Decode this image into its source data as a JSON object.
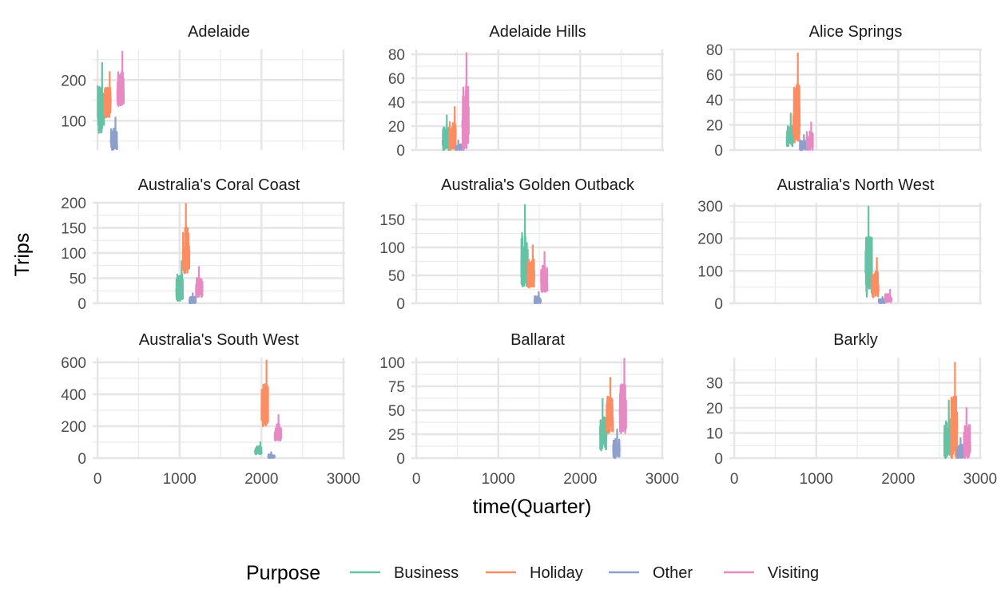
{
  "chart_data": {
    "type": "line",
    "xlabel": "time(Quarter)",
    "ylabel": "Trips",
    "legend": {
      "title": "Purpose",
      "position": "bottom",
      "entries": [
        {
          "name": "Business",
          "color": "#66c2a5"
        },
        {
          "name": "Holiday",
          "color": "#fc8d62"
        },
        {
          "name": "Other",
          "color": "#8da0cb"
        },
        {
          "name": "Visiting",
          "color": "#e78ac3"
        }
      ]
    },
    "x_ticks": [
      0,
      1000,
      2000,
      3000
    ],
    "grid": true,
    "panels": [
      {
        "title": "Adelaide",
        "xlim": [
          -60,
          3020
        ],
        "ylim": [
          28,
          275
        ],
        "y_ticks": [
          100,
          200
        ],
        "series": [
          {
            "name": "Business",
            "x": [
              0,
              80
            ],
            "range": [
              70,
              242
            ]
          },
          {
            "name": "Holiday",
            "x": [
              80,
              160
            ],
            "range": [
              108,
              220
            ]
          },
          {
            "name": "Other",
            "x": [
              160,
              240
            ],
            "range": [
              28,
              108
            ]
          },
          {
            "name": "Visiting",
            "x": [
              240,
              320
            ],
            "range": [
              136,
              270
            ]
          }
        ]
      },
      {
        "title": "Adelaide Hills",
        "xlim": [
          -60,
          3020
        ],
        "ylim": [
          0,
          84
        ],
        "y_ticks": [
          0,
          20,
          40,
          60,
          80
        ],
        "series": [
          {
            "name": "Business",
            "x": [
              320,
              400
            ],
            "range": [
              0,
              29
            ]
          },
          {
            "name": "Holiday",
            "x": [
              400,
              480
            ],
            "range": [
              0,
              36
            ]
          },
          {
            "name": "Other",
            "x": [
              480,
              560
            ],
            "range": [
              0,
              8
            ]
          },
          {
            "name": "Visiting",
            "x": [
              560,
              640
            ],
            "range": [
              0,
              81
            ]
          }
        ]
      },
      {
        "title": "Alice Springs",
        "xlim": [
          -60,
          3020
        ],
        "ylim": [
          0,
          80
        ],
        "y_ticks": [
          0,
          20,
          40,
          60,
          80
        ],
        "series": [
          {
            "name": "Business",
            "x": [
              640,
              720
            ],
            "range": [
              3,
              29
            ]
          },
          {
            "name": "Holiday",
            "x": [
              720,
              800
            ],
            "range": [
              6,
              77
            ]
          },
          {
            "name": "Other",
            "x": [
              800,
              880
            ],
            "range": [
              0,
              12
            ]
          },
          {
            "name": "Visiting",
            "x": [
              880,
              960
            ],
            "range": [
              0,
              22
            ]
          }
        ]
      },
      {
        "title": "Australia's Coral Coast",
        "xlim": [
          -60,
          3020
        ],
        "ylim": [
          0,
          200
        ],
        "y_ticks": [
          0,
          50,
          100,
          150,
          200
        ],
        "series": [
          {
            "name": "Business",
            "x": [
              960,
              1040
            ],
            "range": [
              5,
              84
            ]
          },
          {
            "name": "Holiday",
            "x": [
              1040,
              1120
            ],
            "range": [
              60,
              198
            ]
          },
          {
            "name": "Other",
            "x": [
              1120,
              1200
            ],
            "range": [
              0,
              20
            ]
          },
          {
            "name": "Visiting",
            "x": [
              1200,
              1280
            ],
            "range": [
              12,
              72
            ]
          }
        ]
      },
      {
        "title": "Australia's Golden Outback",
        "xlim": [
          -60,
          3020
        ],
        "ylim": [
          0,
          180
        ],
        "y_ticks": [
          0,
          50,
          100,
          150
        ],
        "series": [
          {
            "name": "Business",
            "x": [
              1280,
              1360
            ],
            "range": [
              30,
              176
            ]
          },
          {
            "name": "Holiday",
            "x": [
              1360,
              1440
            ],
            "range": [
              28,
              104
            ]
          },
          {
            "name": "Other",
            "x": [
              1440,
              1520
            ],
            "range": [
              0,
              20
            ]
          },
          {
            "name": "Visiting",
            "x": [
              1520,
              1600
            ],
            "range": [
              20,
              92
            ]
          }
        ]
      },
      {
        "title": "Australia's North West",
        "xlim": [
          -60,
          3020
        ],
        "ylim": [
          0,
          310
        ],
        "y_ticks": [
          0,
          100,
          200,
          300
        ],
        "series": [
          {
            "name": "Business",
            "x": [
              1600,
              1680
            ],
            "range": [
              20,
              298
            ]
          },
          {
            "name": "Holiday",
            "x": [
              1680,
              1760
            ],
            "range": [
              18,
              140
            ]
          },
          {
            "name": "Other",
            "x": [
              1760,
              1840
            ],
            "range": [
              0,
              20
            ]
          },
          {
            "name": "Visiting",
            "x": [
              1840,
              1920
            ],
            "range": [
              3,
              42
            ]
          }
        ]
      },
      {
        "title": "Australia's South West",
        "xlim": [
          -60,
          3020
        ],
        "ylim": [
          0,
          630
        ],
        "y_ticks": [
          0,
          200,
          400,
          600
        ],
        "series": [
          {
            "name": "Business",
            "x": [
              1920,
              2000
            ],
            "range": [
              24,
              100
            ]
          },
          {
            "name": "Holiday",
            "x": [
              2000,
              2080
            ],
            "range": [
              200,
              612
            ]
          },
          {
            "name": "Other",
            "x": [
              2080,
              2160
            ],
            "range": [
              0,
              38
            ]
          },
          {
            "name": "Visiting",
            "x": [
              2160,
              2240
            ],
            "range": [
              110,
              270
            ]
          }
        ]
      },
      {
        "title": "Ballarat",
        "xlim": [
          -60,
          3020
        ],
        "ylim": [
          0,
          105
        ],
        "y_ticks": [
          0,
          25,
          50,
          75,
          100
        ],
        "series": [
          {
            "name": "Business",
            "x": [
              2240,
              2320
            ],
            "range": [
              8,
              62
            ]
          },
          {
            "name": "Holiday",
            "x": [
              2320,
              2400
            ],
            "range": [
              26,
              84
            ]
          },
          {
            "name": "Other",
            "x": [
              2400,
              2480
            ],
            "range": [
              0,
              30
            ]
          },
          {
            "name": "Visiting",
            "x": [
              2480,
              2560
            ],
            "range": [
              26,
              104
            ]
          }
        ]
      },
      {
        "title": "Barkly",
        "xlim": [
          -60,
          3020
        ],
        "ylim": [
          0,
          40
        ],
        "y_ticks": [
          0,
          10,
          20,
          30
        ],
        "series": [
          {
            "name": "Business",
            "x": [
              2560,
              2640
            ],
            "range": [
              0,
              23
            ]
          },
          {
            "name": "Holiday",
            "x": [
              2640,
              2720
            ],
            "range": [
              0,
              38
            ]
          },
          {
            "name": "Other",
            "x": [
              2720,
              2800
            ],
            "range": [
              0,
              8
            ]
          },
          {
            "name": "Visiting",
            "x": [
              2800,
              2880
            ],
            "range": [
              0,
              20
            ]
          }
        ]
      }
    ]
  }
}
